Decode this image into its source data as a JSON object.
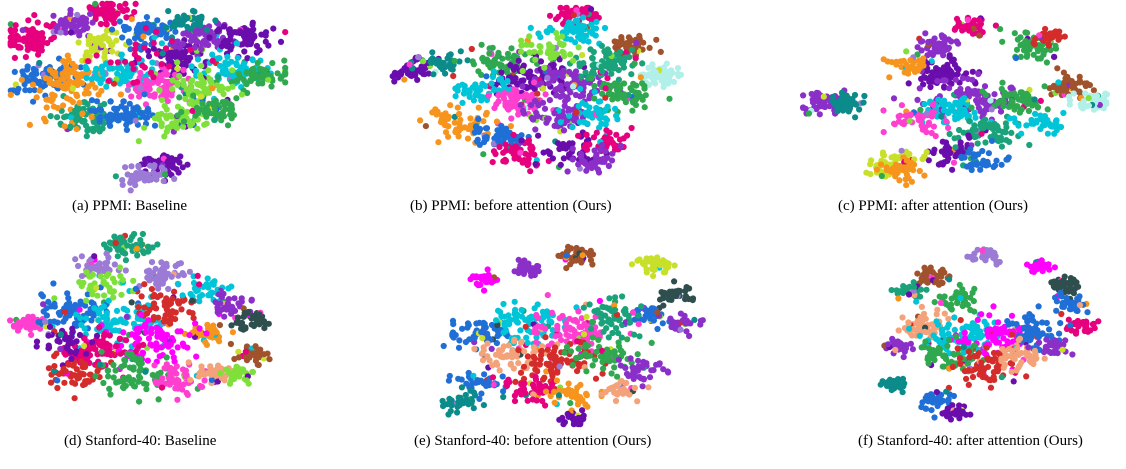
{
  "figure": {
    "captions": [
      "(a) PPMI: Baseline",
      "(b) PPMI: before attention (Ours)",
      "(c) PPMI: after attention (Ours)",
      "(d) Stanford-40: Baseline",
      "(e) Stanford-40: before attention (Ours)",
      "(f) Stanford-40: after attention (Ours)"
    ]
  },
  "chart_data": [
    {
      "type": "scatter",
      "title": "(a) PPMI: Baseline",
      "colors": [
        "#e6007e",
        "#8b2fc9",
        "#1f6fd6",
        "#00c4d8",
        "#2fa84f",
        "#7fe03a",
        "#f7941d",
        "#1aa37a",
        "#6a0dad",
        "#d42b2b",
        "#c8e02a",
        "#9b7bd6",
        "#0c8b8b",
        "#ff3fd0"
      ],
      "clusters": [
        {
          "x": 0.36,
          "y": 0.06,
          "n": 70,
          "s": 0.03,
          "c": 0
        },
        {
          "x": 0.07,
          "y": 0.2,
          "n": 90,
          "s": 0.04,
          "c": 0
        },
        {
          "x": 0.22,
          "y": 0.12,
          "n": 60,
          "s": 0.03,
          "c": 1
        },
        {
          "x": 0.34,
          "y": 0.23,
          "n": 60,
          "s": 0.03,
          "c": 10
        },
        {
          "x": 0.5,
          "y": 0.17,
          "n": 80,
          "s": 0.04,
          "c": 2
        },
        {
          "x": 0.6,
          "y": 0.3,
          "n": 80,
          "s": 0.045,
          "c": 8
        },
        {
          "x": 0.7,
          "y": 0.2,
          "n": 70,
          "s": 0.04,
          "c": 1
        },
        {
          "x": 0.85,
          "y": 0.2,
          "n": 70,
          "s": 0.04,
          "c": 8
        },
        {
          "x": 0.8,
          "y": 0.36,
          "n": 80,
          "s": 0.045,
          "c": 3
        },
        {
          "x": 0.9,
          "y": 0.38,
          "n": 60,
          "s": 0.04,
          "c": 4
        },
        {
          "x": 0.12,
          "y": 0.4,
          "n": 80,
          "s": 0.045,
          "c": 2
        },
        {
          "x": 0.25,
          "y": 0.4,
          "n": 70,
          "s": 0.045,
          "c": 6
        },
        {
          "x": 0.4,
          "y": 0.38,
          "n": 70,
          "s": 0.045,
          "c": 3
        },
        {
          "x": 0.52,
          "y": 0.45,
          "n": 80,
          "s": 0.045,
          "c": 13
        },
        {
          "x": 0.67,
          "y": 0.45,
          "n": 70,
          "s": 0.045,
          "c": 5
        },
        {
          "x": 0.28,
          "y": 0.6,
          "n": 80,
          "s": 0.04,
          "c": 7
        },
        {
          "x": 0.42,
          "y": 0.58,
          "n": 70,
          "s": 0.04,
          "c": 2
        },
        {
          "x": 0.6,
          "y": 0.62,
          "n": 60,
          "s": 0.04,
          "c": 5
        },
        {
          "x": 0.73,
          "y": 0.56,
          "n": 60,
          "s": 0.04,
          "c": 4
        },
        {
          "x": 0.55,
          "y": 0.85,
          "n": 50,
          "s": 0.03,
          "c": 8
        },
        {
          "x": 0.48,
          "y": 0.9,
          "n": 50,
          "s": 0.03,
          "c": 11
        },
        {
          "x": 0.2,
          "y": 0.52,
          "n": 30,
          "s": 0.06,
          "c": 6
        },
        {
          "x": 0.5,
          "y": 0.3,
          "n": 30,
          "s": 0.07,
          "c": 0
        },
        {
          "x": 0.65,
          "y": 0.1,
          "n": 40,
          "s": 0.03,
          "c": 12
        }
      ]
    },
    {
      "type": "scatter",
      "title": "(b) PPMI: before attention (Ours)",
      "colors": [
        "#e6007e",
        "#8b2fc9",
        "#1f6fd6",
        "#00c4d8",
        "#2fa84f",
        "#7fe03a",
        "#f7941d",
        "#1aa37a",
        "#6a0dad",
        "#d42b2b",
        "#c8e02a",
        "#9b7bd6",
        "#0c8b8b",
        "#ff3fd0",
        "#a0522d",
        "#b0f0e8"
      ],
      "clusters": [
        {
          "x": 0.64,
          "y": 0.06,
          "n": 50,
          "s": 0.03,
          "c": 0
        },
        {
          "x": 0.64,
          "y": 0.14,
          "n": 60,
          "s": 0.035,
          "c": 3
        },
        {
          "x": 0.83,
          "y": 0.22,
          "n": 50,
          "s": 0.03,
          "c": 14
        },
        {
          "x": 0.92,
          "y": 0.38,
          "n": 50,
          "s": 0.03,
          "c": 15
        },
        {
          "x": 0.1,
          "y": 0.35,
          "n": 50,
          "s": 0.03,
          "c": 8
        },
        {
          "x": 0.18,
          "y": 0.32,
          "n": 40,
          "s": 0.03,
          "c": 12
        },
        {
          "x": 0.4,
          "y": 0.3,
          "n": 60,
          "s": 0.04,
          "c": 4
        },
        {
          "x": 0.5,
          "y": 0.4,
          "n": 90,
          "s": 0.05,
          "c": 8
        },
        {
          "x": 0.6,
          "y": 0.42,
          "n": 80,
          "s": 0.05,
          "c": 1
        },
        {
          "x": 0.74,
          "y": 0.32,
          "n": 70,
          "s": 0.04,
          "c": 7
        },
        {
          "x": 0.8,
          "y": 0.46,
          "n": 60,
          "s": 0.04,
          "c": 4
        },
        {
          "x": 0.33,
          "y": 0.45,
          "n": 60,
          "s": 0.04,
          "c": 3
        },
        {
          "x": 0.45,
          "y": 0.52,
          "n": 70,
          "s": 0.04,
          "c": 13
        },
        {
          "x": 0.58,
          "y": 0.58,
          "n": 70,
          "s": 0.045,
          "c": 1
        },
        {
          "x": 0.7,
          "y": 0.58,
          "n": 50,
          "s": 0.04,
          "c": 3
        },
        {
          "x": 0.26,
          "y": 0.62,
          "n": 60,
          "s": 0.04,
          "c": 6
        },
        {
          "x": 0.38,
          "y": 0.7,
          "n": 50,
          "s": 0.035,
          "c": 2
        },
        {
          "x": 0.45,
          "y": 0.78,
          "n": 50,
          "s": 0.035,
          "c": 0
        },
        {
          "x": 0.62,
          "y": 0.78,
          "n": 50,
          "s": 0.04,
          "c": 8
        },
        {
          "x": 0.75,
          "y": 0.72,
          "n": 40,
          "s": 0.03,
          "c": 0
        },
        {
          "x": 0.7,
          "y": 0.82,
          "n": 40,
          "s": 0.03,
          "c": 1
        },
        {
          "x": 0.53,
          "y": 0.25,
          "n": 40,
          "s": 0.04,
          "c": 5
        }
      ]
    },
    {
      "type": "scatter",
      "title": "(c) PPMI: after attention (Ours)",
      "colors": [
        "#e6007e",
        "#8b2fc9",
        "#1f6fd6",
        "#00c4d8",
        "#2fa84f",
        "#7fe03a",
        "#f7941d",
        "#1aa37a",
        "#6a0dad",
        "#d42b2b",
        "#c8e02a",
        "#9b7bd6",
        "#0c8b8b",
        "#ff3fd0",
        "#a0522d",
        "#b0f0e8"
      ],
      "clusters": [
        {
          "x": 0.56,
          "y": 0.1,
          "n": 40,
          "s": 0.025,
          "c": 0
        },
        {
          "x": 0.44,
          "y": 0.2,
          "n": 50,
          "s": 0.03,
          "c": 1
        },
        {
          "x": 0.76,
          "y": 0.2,
          "n": 60,
          "s": 0.035,
          "c": 4
        },
        {
          "x": 0.8,
          "y": 0.16,
          "n": 30,
          "s": 0.02,
          "c": 9
        },
        {
          "x": 0.87,
          "y": 0.42,
          "n": 50,
          "s": 0.03,
          "c": 14
        },
        {
          "x": 0.95,
          "y": 0.5,
          "n": 40,
          "s": 0.03,
          "c": 15
        },
        {
          "x": 0.08,
          "y": 0.5,
          "n": 60,
          "s": 0.03,
          "c": 1
        },
        {
          "x": 0.15,
          "y": 0.5,
          "n": 40,
          "s": 0.025,
          "c": 12
        },
        {
          "x": 0.45,
          "y": 0.35,
          "n": 70,
          "s": 0.04,
          "c": 8
        },
        {
          "x": 0.55,
          "y": 0.48,
          "n": 100,
          "s": 0.055,
          "c": 1
        },
        {
          "x": 0.5,
          "y": 0.55,
          "n": 60,
          "s": 0.04,
          "c": 3
        },
        {
          "x": 0.7,
          "y": 0.5,
          "n": 60,
          "s": 0.04,
          "c": 4
        },
        {
          "x": 0.38,
          "y": 0.6,
          "n": 50,
          "s": 0.04,
          "c": 13
        },
        {
          "x": 0.6,
          "y": 0.66,
          "n": 60,
          "s": 0.04,
          "c": 7
        },
        {
          "x": 0.5,
          "y": 0.76,
          "n": 50,
          "s": 0.035,
          "c": 8
        },
        {
          "x": 0.3,
          "y": 0.82,
          "n": 50,
          "s": 0.035,
          "c": 10
        },
        {
          "x": 0.34,
          "y": 0.86,
          "n": 40,
          "s": 0.03,
          "c": 6
        },
        {
          "x": 0.58,
          "y": 0.8,
          "n": 40,
          "s": 0.03,
          "c": 2
        },
        {
          "x": 0.78,
          "y": 0.62,
          "n": 40,
          "s": 0.03,
          "c": 3
        },
        {
          "x": 0.35,
          "y": 0.3,
          "n": 30,
          "s": 0.03,
          "c": 6
        }
      ]
    },
    {
      "type": "scatter",
      "title": "(d) Stanford-40: Baseline",
      "colors": [
        "#e6007e",
        "#8b2fc9",
        "#1f6fd6",
        "#00c4d8",
        "#2fa84f",
        "#7fe03a",
        "#f7941d",
        "#1aa37a",
        "#6a0dad",
        "#d42b2b",
        "#c8e02a",
        "#9b7bd6",
        "#0c8b8b",
        "#ff3fd0",
        "#a0522d",
        "#2f4f4f",
        "#ff00ff",
        "#f4a27a"
      ],
      "clusters": [
        {
          "x": 0.42,
          "y": 0.07,
          "n": 60,
          "s": 0.03,
          "c": 7
        },
        {
          "x": 0.32,
          "y": 0.18,
          "n": 40,
          "s": 0.03,
          "c": 11
        },
        {
          "x": 0.55,
          "y": 0.22,
          "n": 50,
          "s": 0.03,
          "c": 11
        },
        {
          "x": 0.07,
          "y": 0.47,
          "n": 40,
          "s": 0.02,
          "c": 13
        },
        {
          "x": 0.25,
          "y": 0.4,
          "n": 80,
          "s": 0.05,
          "c": 2
        },
        {
          "x": 0.4,
          "y": 0.45,
          "n": 90,
          "s": 0.06,
          "c": 3
        },
        {
          "x": 0.55,
          "y": 0.38,
          "n": 60,
          "s": 0.04,
          "c": 9
        },
        {
          "x": 0.7,
          "y": 0.3,
          "n": 40,
          "s": 0.03,
          "c": 3
        },
        {
          "x": 0.78,
          "y": 0.38,
          "n": 40,
          "s": 0.03,
          "c": 1
        },
        {
          "x": 0.85,
          "y": 0.45,
          "n": 40,
          "s": 0.025,
          "c": 15
        },
        {
          "x": 0.85,
          "y": 0.62,
          "n": 40,
          "s": 0.025,
          "c": 14
        },
        {
          "x": 0.7,
          "y": 0.52,
          "n": 40,
          "s": 0.03,
          "c": 6
        },
        {
          "x": 0.5,
          "y": 0.55,
          "n": 90,
          "s": 0.06,
          "c": 16
        },
        {
          "x": 0.3,
          "y": 0.6,
          "n": 80,
          "s": 0.05,
          "c": 0
        },
        {
          "x": 0.25,
          "y": 0.72,
          "n": 60,
          "s": 0.04,
          "c": 9
        },
        {
          "x": 0.45,
          "y": 0.72,
          "n": 70,
          "s": 0.05,
          "c": 4
        },
        {
          "x": 0.6,
          "y": 0.75,
          "n": 60,
          "s": 0.04,
          "c": 13
        },
        {
          "x": 0.72,
          "y": 0.72,
          "n": 40,
          "s": 0.03,
          "c": 17
        },
        {
          "x": 0.8,
          "y": 0.72,
          "n": 30,
          "s": 0.025,
          "c": 5
        },
        {
          "x": 0.35,
          "y": 0.28,
          "n": 40,
          "s": 0.04,
          "c": 5
        },
        {
          "x": 0.2,
          "y": 0.55,
          "n": 40,
          "s": 0.04,
          "c": 8
        }
      ]
    },
    {
      "type": "scatter",
      "title": "(e) Stanford-40: before attention (Ours)",
      "colors": [
        "#e6007e",
        "#8b2fc9",
        "#1f6fd6",
        "#00c4d8",
        "#2fa84f",
        "#7fe03a",
        "#f7941d",
        "#1aa37a",
        "#6a0dad",
        "#d42b2b",
        "#c8e02a",
        "#9b7bd6",
        "#0c8b8b",
        "#ff3fd0",
        "#a0522d",
        "#2f4f4f",
        "#ff00ff",
        "#f4a27a"
      ],
      "clusters": [
        {
          "x": 0.82,
          "y": 0.14,
          "n": 40,
          "s": 0.025,
          "c": 10
        },
        {
          "x": 0.55,
          "y": 0.1,
          "n": 40,
          "s": 0.025,
          "c": 14
        },
        {
          "x": 0.4,
          "y": 0.16,
          "n": 30,
          "s": 0.02,
          "c": 1
        },
        {
          "x": 0.25,
          "y": 0.22,
          "n": 30,
          "s": 0.02,
          "c": 16
        },
        {
          "x": 0.88,
          "y": 0.3,
          "n": 40,
          "s": 0.025,
          "c": 15
        },
        {
          "x": 0.8,
          "y": 0.4,
          "n": 40,
          "s": 0.025,
          "c": 2
        },
        {
          "x": 0.92,
          "y": 0.45,
          "n": 30,
          "s": 0.025,
          "c": 1
        },
        {
          "x": 0.25,
          "y": 0.5,
          "n": 60,
          "s": 0.045,
          "c": 2
        },
        {
          "x": 0.4,
          "y": 0.45,
          "n": 90,
          "s": 0.06,
          "c": 3
        },
        {
          "x": 0.55,
          "y": 0.5,
          "n": 90,
          "s": 0.06,
          "c": 13
        },
        {
          "x": 0.68,
          "y": 0.42,
          "n": 60,
          "s": 0.045,
          "c": 7
        },
        {
          "x": 0.35,
          "y": 0.62,
          "n": 70,
          "s": 0.05,
          "c": 17
        },
        {
          "x": 0.5,
          "y": 0.66,
          "n": 80,
          "s": 0.055,
          "c": 9
        },
        {
          "x": 0.65,
          "y": 0.62,
          "n": 60,
          "s": 0.045,
          "c": 4
        },
        {
          "x": 0.78,
          "y": 0.7,
          "n": 40,
          "s": 0.03,
          "c": 1
        },
        {
          "x": 0.25,
          "y": 0.76,
          "n": 40,
          "s": 0.03,
          "c": 2
        },
        {
          "x": 0.42,
          "y": 0.8,
          "n": 50,
          "s": 0.04,
          "c": 0
        },
        {
          "x": 0.55,
          "y": 0.82,
          "n": 40,
          "s": 0.035,
          "c": 6
        },
        {
          "x": 0.18,
          "y": 0.86,
          "n": 40,
          "s": 0.025,
          "c": 12
        },
        {
          "x": 0.55,
          "y": 0.95,
          "n": 30,
          "s": 0.02,
          "c": 8
        },
        {
          "x": 0.7,
          "y": 0.8,
          "n": 30,
          "s": 0.025,
          "c": 17
        }
      ]
    },
    {
      "type": "scatter",
      "title": "(f) Stanford-40: after attention (Ours)",
      "colors": [
        "#e6007e",
        "#8b2fc9",
        "#1f6fd6",
        "#00c4d8",
        "#2fa84f",
        "#7fe03a",
        "#f7941d",
        "#1aa37a",
        "#6a0dad",
        "#d42b2b",
        "#c8e02a",
        "#9b7bd6",
        "#0c8b8b",
        "#ff3fd0",
        "#a0522d",
        "#2f4f4f",
        "#ff00ff",
        "#f4a27a"
      ],
      "clusters": [
        {
          "x": 0.5,
          "y": 0.06,
          "n": 30,
          "s": 0.02,
          "c": 11
        },
        {
          "x": 0.7,
          "y": 0.12,
          "n": 30,
          "s": 0.02,
          "c": 16
        },
        {
          "x": 0.8,
          "y": 0.22,
          "n": 40,
          "s": 0.025,
          "c": 15
        },
        {
          "x": 0.82,
          "y": 0.32,
          "n": 40,
          "s": 0.025,
          "c": 2
        },
        {
          "x": 0.86,
          "y": 0.44,
          "n": 30,
          "s": 0.02,
          "c": 0
        },
        {
          "x": 0.3,
          "y": 0.18,
          "n": 40,
          "s": 0.025,
          "c": 14
        },
        {
          "x": 0.2,
          "y": 0.26,
          "n": 30,
          "s": 0.02,
          "c": 7
        },
        {
          "x": 0.4,
          "y": 0.3,
          "n": 40,
          "s": 0.03,
          "c": 4
        },
        {
          "x": 0.25,
          "y": 0.45,
          "n": 60,
          "s": 0.04,
          "c": 17
        },
        {
          "x": 0.4,
          "y": 0.5,
          "n": 90,
          "s": 0.055,
          "c": 3
        },
        {
          "x": 0.55,
          "y": 0.5,
          "n": 80,
          "s": 0.055,
          "c": 16
        },
        {
          "x": 0.68,
          "y": 0.48,
          "n": 60,
          "s": 0.04,
          "c": 2
        },
        {
          "x": 0.35,
          "y": 0.62,
          "n": 60,
          "s": 0.045,
          "c": 4
        },
        {
          "x": 0.5,
          "y": 0.66,
          "n": 70,
          "s": 0.05,
          "c": 9
        },
        {
          "x": 0.62,
          "y": 0.6,
          "n": 50,
          "s": 0.04,
          "c": 17
        },
        {
          "x": 0.75,
          "y": 0.56,
          "n": 30,
          "s": 0.025,
          "c": 1
        },
        {
          "x": 0.15,
          "y": 0.55,
          "n": 30,
          "s": 0.025,
          "c": 1
        },
        {
          "x": 0.15,
          "y": 0.76,
          "n": 30,
          "s": 0.02,
          "c": 12
        },
        {
          "x": 0.3,
          "y": 0.84,
          "n": 40,
          "s": 0.025,
          "c": 2
        },
        {
          "x": 0.38,
          "y": 0.9,
          "n": 30,
          "s": 0.02,
          "c": 8
        }
      ]
    }
  ]
}
